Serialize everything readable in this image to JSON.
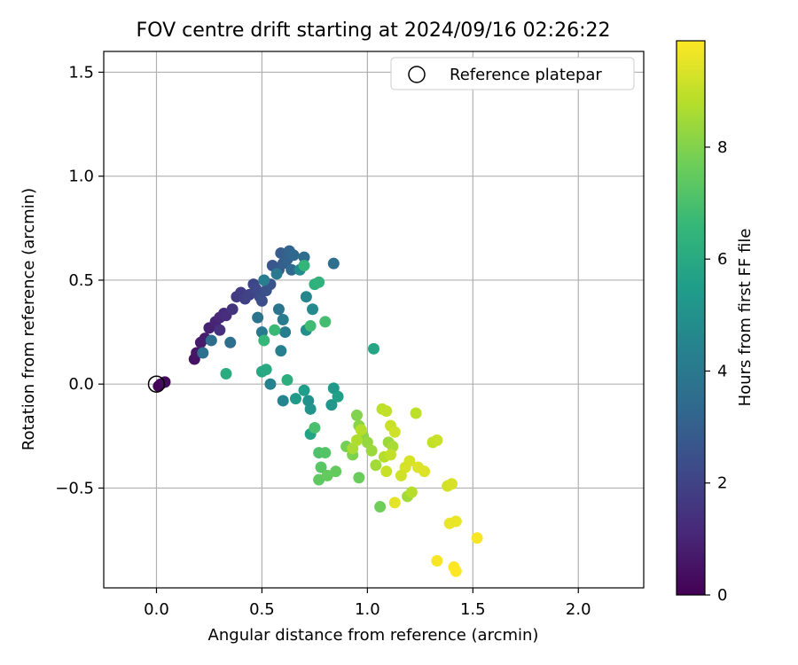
{
  "chart_data": {
    "type": "scatter",
    "title": "FOV centre drift starting at 2024/09/16 02:26:22",
    "xlabel": "Angular distance from reference (arcmin)",
    "ylabel": "Rotation from reference (arcmin)",
    "xlim": [
      -0.25,
      2.31
    ],
    "ylim": [
      -0.98,
      1.6
    ],
    "xticks": [
      "0.0",
      "0.5",
      "1.0",
      "1.5",
      "2.0"
    ],
    "xtick_values": [
      0,
      0.5,
      1.0,
      1.5,
      2.0
    ],
    "yticks": [
      "1.5",
      "1.0",
      "0.5",
      "0.0",
      "−0.5"
    ],
    "ytick_values": [
      1.5,
      1.0,
      0.5,
      0.0,
      -0.5
    ],
    "grid": true,
    "legend": {
      "position": "top-right",
      "label": "Reference platepar",
      "marker": "open-circle"
    },
    "reference_point": {
      "x": 0,
      "y": 0
    },
    "colorbar": {
      "label": "Hours from first FF file",
      "range": [
        0,
        9.9
      ],
      "ticks": [
        "0",
        "2",
        "4",
        "6",
        "8"
      ],
      "tick_values": [
        0,
        2,
        4,
        6,
        8
      ],
      "colormap": "viridis",
      "colors": [
        "#440154",
        "#482878",
        "#3e4989",
        "#31688e",
        "#26828e",
        "#1f9e89",
        "#35b779",
        "#6ece58",
        "#b5de2b",
        "#fde725"
      ]
    },
    "points": [
      [
        0.01,
        -0.01,
        0.1
      ],
      [
        0.02,
        0.0,
        0.15
      ],
      [
        0.04,
        0.01,
        0.3
      ],
      [
        0.18,
        0.12,
        0.5
      ],
      [
        0.19,
        0.15,
        0.6
      ],
      [
        0.21,
        0.2,
        0.7
      ],
      [
        0.23,
        0.22,
        0.8
      ],
      [
        0.25,
        0.27,
        0.9
      ],
      [
        0.28,
        0.3,
        1.0
      ],
      [
        0.3,
        0.32,
        1.1
      ],
      [
        0.32,
        0.34,
        1.2
      ],
      [
        0.33,
        0.33,
        1.3
      ],
      [
        0.36,
        0.36,
        1.5
      ],
      [
        0.38,
        0.42,
        1.7
      ],
      [
        0.4,
        0.44,
        1.8
      ],
      [
        0.42,
        0.41,
        1.9
      ],
      [
        0.44,
        0.43,
        2.0
      ],
      [
        0.46,
        0.48,
        2.1
      ],
      [
        0.47,
        0.46,
        2.2
      ],
      [
        0.49,
        0.42,
        2.3
      ],
      [
        0.5,
        0.4,
        2.4
      ],
      [
        0.52,
        0.45,
        2.5
      ],
      [
        0.54,
        0.48,
        2.6
      ],
      [
        0.55,
        0.57,
        2.7
      ],
      [
        0.58,
        0.55,
        2.8
      ],
      [
        0.59,
        0.63,
        2.9
      ],
      [
        0.6,
        0.58,
        3.0
      ],
      [
        0.62,
        0.6,
        3.1
      ],
      [
        0.63,
        0.64,
        3.2
      ],
      [
        0.65,
        0.62,
        3.3
      ],
      [
        0.64,
        0.55,
        3.4
      ],
      [
        0.7,
        0.61,
        3.5
      ],
      [
        0.84,
        0.58,
        3.6
      ],
      [
        0.3,
        0.26,
        1.4
      ],
      [
        0.26,
        0.21,
        3.5
      ],
      [
        0.22,
        0.15,
        3.7
      ],
      [
        0.35,
        0.2,
        3.6
      ],
      [
        0.48,
        0.32,
        3.8
      ],
      [
        0.5,
        0.25,
        4.0
      ],
      [
        0.58,
        0.36,
        3.9
      ],
      [
        0.6,
        0.31,
        4.1
      ],
      [
        0.61,
        0.25,
        4.2
      ],
      [
        0.59,
        0.16,
        4.3
      ],
      [
        0.54,
        0.0,
        4.4
      ],
      [
        0.6,
        -0.08,
        4.5
      ],
      [
        0.71,
        0.42,
        4.6
      ],
      [
        0.74,
        0.36,
        4.7
      ],
      [
        0.68,
        0.55,
        4.8
      ],
      [
        0.57,
        0.53,
        4.0
      ],
      [
        0.51,
        0.5,
        4.2
      ],
      [
        0.71,
        0.26,
        4.9
      ],
      [
        0.72,
        -0.08,
        5.0
      ],
      [
        0.73,
        -0.12,
        5.1
      ],
      [
        0.83,
        -0.1,
        5.2
      ],
      [
        0.84,
        -0.02,
        5.3
      ],
      [
        0.66,
        -0.07,
        5.4
      ],
      [
        0.7,
        -0.03,
        5.5
      ],
      [
        0.86,
        -0.06,
        5.6
      ],
      [
        0.73,
        -0.24,
        5.7
      ],
      [
        1.03,
        0.17,
        5.8
      ],
      [
        0.5,
        0.06,
        5.9
      ],
      [
        0.52,
        0.07,
        6.0
      ],
      [
        0.33,
        0.05,
        6.1
      ],
      [
        0.62,
        0.02,
        6.2
      ],
      [
        0.75,
        0.48,
        6.3
      ],
      [
        0.77,
        0.49,
        6.4
      ],
      [
        0.7,
        0.57,
        6.5
      ],
      [
        0.51,
        0.21,
        6.6
      ],
      [
        0.56,
        0.26,
        6.7
      ],
      [
        0.73,
        0.28,
        6.8
      ],
      [
        0.8,
        0.3,
        6.9
      ],
      [
        0.75,
        -0.21,
        7.0
      ],
      [
        0.77,
        -0.33,
        7.1
      ],
      [
        0.8,
        -0.33,
        7.2
      ],
      [
        0.78,
        -0.4,
        7.3
      ],
      [
        0.77,
        -0.46,
        7.4
      ],
      [
        0.81,
        -0.44,
        7.5
      ],
      [
        0.85,
        -0.42,
        7.5
      ],
      [
        0.96,
        -0.45,
        7.6
      ],
      [
        1.06,
        -0.59,
        7.7
      ],
      [
        0.9,
        -0.3,
        7.8
      ],
      [
        0.93,
        -0.34,
        7.9
      ],
      [
        0.95,
        -0.15,
        8.0
      ],
      [
        0.96,
        -0.2,
        8.1
      ],
      [
        0.98,
        -0.25,
        8.2
      ],
      [
        1.0,
        -0.28,
        8.3
      ],
      [
        1.02,
        -0.32,
        8.4
      ],
      [
        1.04,
        -0.39,
        8.5
      ],
      [
        0.93,
        -0.31,
        8.6
      ],
      [
        0.95,
        -0.27,
        8.7
      ],
      [
        0.97,
        -0.22,
        8.8
      ],
      [
        1.07,
        -0.12,
        8.9
      ],
      [
        1.09,
        -0.13,
        9.0
      ],
      [
        1.11,
        -0.2,
        9.1
      ],
      [
        1.13,
        -0.23,
        9.2
      ],
      [
        1.1,
        -0.28,
        8.4
      ],
      [
        1.12,
        -0.3,
        8.6
      ],
      [
        1.08,
        -0.35,
        8.8
      ],
      [
        1.11,
        -0.34,
        9.0
      ],
      [
        1.09,
        -0.42,
        9.1
      ],
      [
        1.16,
        -0.44,
        9.2
      ],
      [
        1.18,
        -0.4,
        9.3
      ],
      [
        1.2,
        -0.37,
        9.3
      ],
      [
        1.19,
        -0.54,
        8.5
      ],
      [
        1.21,
        -0.52,
        8.8
      ],
      [
        1.24,
        -0.4,
        9.4
      ],
      [
        1.27,
        -0.42,
        9.4
      ],
      [
        1.23,
        -0.14,
        8.9
      ],
      [
        1.31,
        -0.28,
        9.0
      ],
      [
        1.33,
        -0.27,
        9.1
      ],
      [
        1.38,
        -0.49,
        9.2
      ],
      [
        1.4,
        -0.48,
        9.3
      ],
      [
        1.13,
        -0.57,
        9.5
      ],
      [
        1.39,
        -0.67,
        9.6
      ],
      [
        1.42,
        -0.66,
        9.6
      ],
      [
        1.52,
        -0.74,
        9.8
      ],
      [
        1.33,
        -0.85,
        9.8
      ],
      [
        1.41,
        -0.88,
        9.9
      ],
      [
        1.42,
        -0.9,
        9.9
      ]
    ]
  }
}
